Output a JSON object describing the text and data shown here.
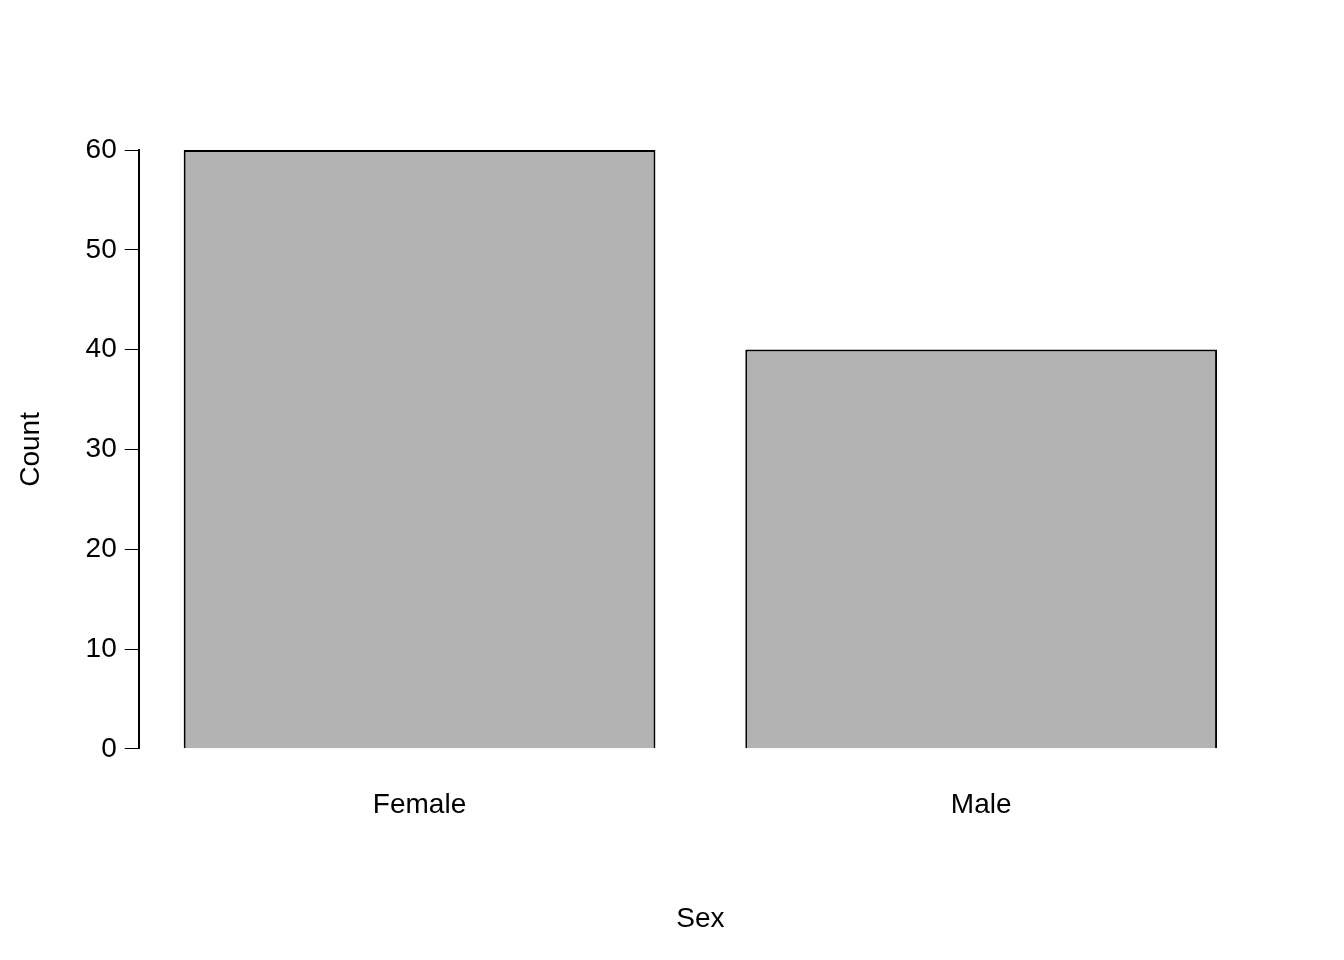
{
  "chart_data": {
    "type": "bar",
    "xlabel": "Sex",
    "ylabel": "Count",
    "categories": [
      "Female",
      "Male"
    ],
    "values": [
      60,
      40
    ],
    "color": "#b3b3b3",
    "ylim": [
      0,
      60
    ],
    "yticks": [
      0,
      10,
      20,
      30,
      40,
      50,
      60
    ],
    "grid": false,
    "legend": false
  }
}
